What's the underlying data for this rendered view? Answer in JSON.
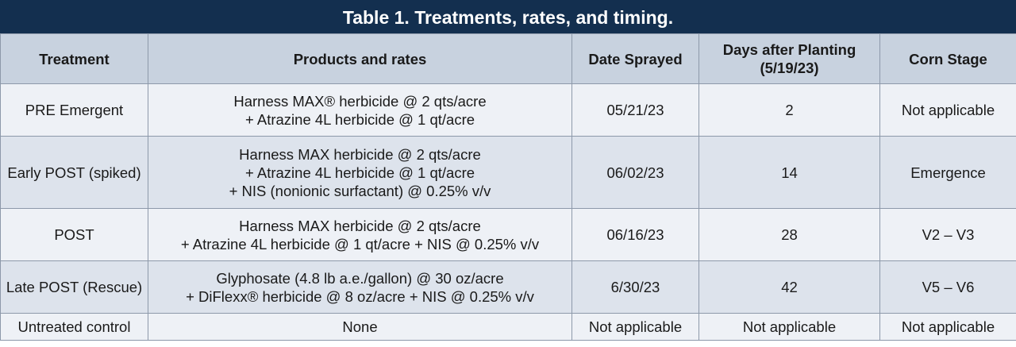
{
  "title": "Table 1. Treatments, rates, and timing.",
  "table": {
    "header": [
      [
        "Treatment"
      ],
      [
        "Products and rates"
      ],
      [
        "Date Sprayed"
      ],
      [
        "Days after Planting",
        "(5/19/23)"
      ],
      [
        "Corn Stage"
      ]
    ],
    "rows": [
      [
        [
          "PRE Emergent"
        ],
        [
          "Harness MAX® herbicide @ 2 qts/acre",
          "+ Atrazine 4L herbicide @ 1 qt/acre"
        ],
        [
          "05/21/23"
        ],
        [
          "2"
        ],
        [
          "Not applicable"
        ]
      ],
      [
        [
          "Early POST (spiked)"
        ],
        [
          "Harness MAX herbicide @ 2 qts/acre",
          "+ Atrazine 4L herbicide @ 1 qt/acre",
          "+ NIS (nonionic surfactant) @ 0.25% v/v"
        ],
        [
          "06/02/23"
        ],
        [
          "14"
        ],
        [
          "Emergence"
        ]
      ],
      [
        [
          "POST"
        ],
        [
          "Harness MAX herbicide @ 2 qts/acre",
          "+ Atrazine 4L herbicide @ 1 qt/acre + NIS @ 0.25% v/v"
        ],
        [
          "06/16/23"
        ],
        [
          "28"
        ],
        [
          "V2 – V3"
        ]
      ],
      [
        [
          "Late POST (Rescue)"
        ],
        [
          "Glyphosate (4.8 lb a.e./gallon) @ 30 oz/acre",
          "+ DiFlexx® herbicide @ 8 oz/acre + NIS @ 0.25% v/v"
        ],
        [
          "6/30/23"
        ],
        [
          "42"
        ],
        [
          "V5 – V6"
        ]
      ],
      [
        [
          "Untreated control"
        ],
        [
          "None"
        ],
        [
          "Not applicable"
        ],
        [
          "Not applicable"
        ],
        [
          "Not applicable"
        ]
      ]
    ]
  }
}
